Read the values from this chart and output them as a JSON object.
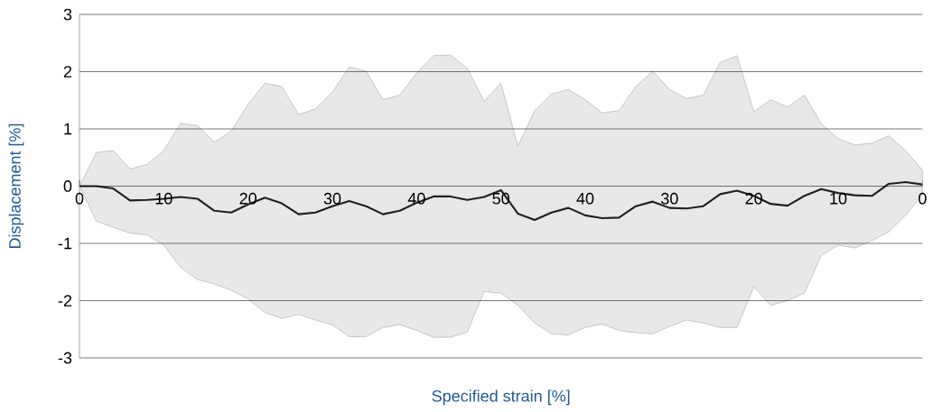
{
  "chart_data": {
    "type": "line",
    "xlabel": "Specified strain [%]",
    "ylabel": "Displacement [%]",
    "categories": [
      "0",
      null,
      null,
      null,
      null,
      "10",
      null,
      null,
      null,
      null,
      "20",
      null,
      null,
      null,
      null,
      "30",
      null,
      null,
      null,
      null,
      "40",
      null,
      null,
      null,
      null,
      "50",
      null,
      null,
      null,
      null,
      "40",
      null,
      null,
      null,
      null,
      "30",
      null,
      null,
      null,
      null,
      "20",
      null,
      null,
      null,
      null,
      "10",
      null,
      null,
      null,
      null,
      "0"
    ],
    "series": [
      {
        "color": "#231f20",
        "values": [
          0,
          0,
          -0.04,
          -0.25,
          -0.24,
          -0.22,
          -0.19,
          -0.22,
          -0.43,
          -0.46,
          -0.32,
          -0.2,
          -0.3,
          -0.49,
          -0.46,
          -0.35,
          -0.26,
          -0.35,
          -0.49,
          -0.43,
          -0.29,
          -0.18,
          -0.18,
          -0.24,
          -0.19,
          -0.07,
          -0.48,
          -0.59,
          -0.46,
          -0.38,
          -0.51,
          -0.56,
          -0.55,
          -0.35,
          -0.27,
          -0.38,
          -0.39,
          -0.35,
          -0.14,
          -0.08,
          -0.17,
          -0.31,
          -0.34,
          -0.17,
          -0.05,
          -0.12,
          -0.16,
          -0.17,
          0.04,
          0.07,
          0.03
        ],
        "lower": [
          0,
          -0.61,
          -0.72,
          -0.82,
          -0.85,
          -1.03,
          -1.42,
          -1.63,
          -1.71,
          -1.82,
          -1.97,
          -2.21,
          -2.31,
          -2.24,
          -2.34,
          -2.42,
          -2.63,
          -2.63,
          -2.47,
          -2.42,
          -2.52,
          -2.64,
          -2.64,
          -2.55,
          -1.84,
          -1.87,
          -2.08,
          -2.39,
          -2.58,
          -2.6,
          -2.47,
          -2.41,
          -2.52,
          -2.56,
          -2.58,
          -2.45,
          -2.34,
          -2.39,
          -2.47,
          -2.47,
          -1.76,
          -2.08,
          -2.0,
          -1.87,
          -1.21,
          -1.03,
          -1.08,
          -0.95,
          -0.8,
          -0.51,
          -0.14
        ],
        "upper": [
          0,
          0.59,
          0.62,
          0.3,
          0.38,
          0.62,
          1.1,
          1.06,
          0.77,
          0.96,
          1.43,
          1.8,
          1.74,
          1.25,
          1.35,
          1.64,
          2.08,
          2.01,
          1.51,
          1.59,
          1.98,
          2.28,
          2.29,
          2.06,
          1.48,
          1.8,
          0.7,
          1.32,
          1.61,
          1.69,
          1.51,
          1.28,
          1.32,
          1.74,
          2.01,
          1.69,
          1.53,
          1.59,
          2.16,
          2.28,
          1.3,
          1.51,
          1.38,
          1.59,
          1.09,
          0.83,
          0.72,
          0.75,
          0.88,
          0.62,
          0.28
        ]
      }
    ],
    "ylim": [
      -3,
      3
    ],
    "yticks": [
      -3,
      -2,
      -1,
      0,
      1,
      2,
      3
    ],
    "grid": "y",
    "marker": "none",
    "line_style": "solid"
  }
}
